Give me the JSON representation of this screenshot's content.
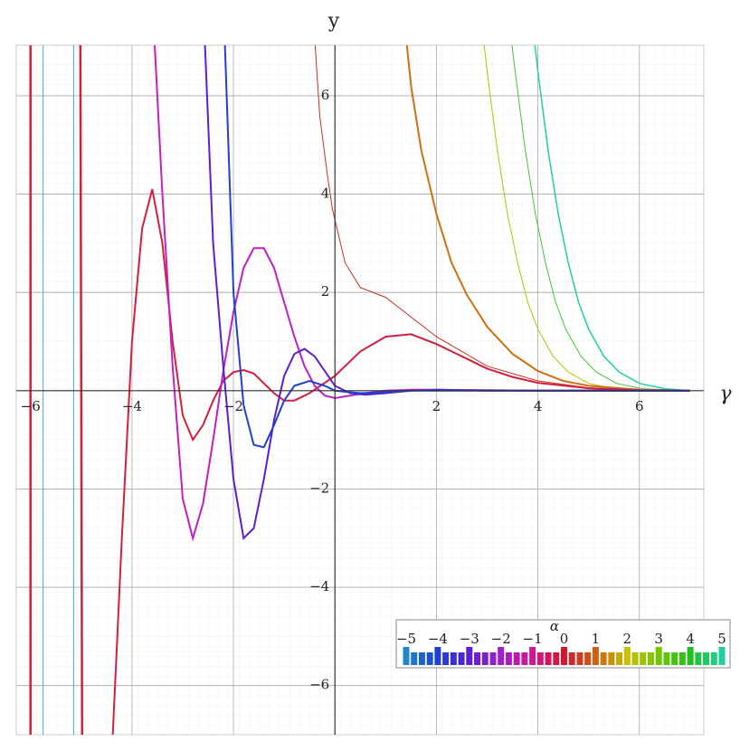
{
  "chart_data": {
    "type": "line",
    "xlabel": "γ",
    "ylabel": "y",
    "xlim": [
      -6.28,
      7.27
    ],
    "ylim": [
      -7.0,
      7.03
    ],
    "grid": true,
    "xticks": [
      {
        "value": -6,
        "label": "−6"
      },
      {
        "value": -4,
        "label": "−4"
      },
      {
        "value": -2,
        "label": "−2"
      },
      2,
      4,
      6
    ],
    "yticks": [
      {
        "value": -6,
        "label": "−6"
      },
      {
        "value": -4,
        "label": "−4"
      },
      {
        "value": -2,
        "label": "−2"
      },
      2,
      4,
      6
    ],
    "series": [
      {
        "color": "#20d0a0",
        "width": 1.5,
        "x": [
          3.9,
          4.0,
          4.2,
          4.4,
          4.6,
          4.8,
          5.0,
          5.3,
          5.6,
          6.0,
          6.5,
          7.0
        ],
        "values": [
          7.4,
          6.5,
          4.9,
          3.6,
          2.6,
          1.8,
          1.25,
          0.7,
          0.38,
          0.15,
          0.04,
          0
        ]
      },
      {
        "color": "#40c830",
        "width": 1,
        "x": [
          3.45,
          3.55,
          3.75,
          3.95,
          4.15,
          4.35,
          4.55,
          4.85,
          5.15,
          5.55,
          6.05,
          7.0
        ],
        "values": [
          7.4,
          6.5,
          4.9,
          3.6,
          2.6,
          1.8,
          1.25,
          0.7,
          0.38,
          0.15,
          0.04,
          0
        ]
      },
      {
        "color": "#b8c000",
        "width": 1,
        "x": [
          2.9,
          3.0,
          3.2,
          3.4,
          3.6,
          3.8,
          4.0,
          4.3,
          4.6,
          5.0,
          5.5,
          7.0
        ],
        "values": [
          7.4,
          6.5,
          4.9,
          3.6,
          2.6,
          1.8,
          1.25,
          0.7,
          0.38,
          0.15,
          0.04,
          0
        ]
      },
      {
        "color": "#d07010",
        "width": 2,
        "x": [
          1.4,
          1.5,
          1.7,
          2.0,
          2.3,
          2.6,
          3.0,
          3.5,
          4.0,
          4.5,
          5,
          6,
          7
        ],
        "values": [
          7.2,
          6.2,
          4.9,
          3.6,
          2.6,
          1.95,
          1.3,
          0.75,
          0.4,
          0.2,
          0.1,
          0.02,
          0
        ]
      },
      {
        "color": "#c83020",
        "width": 1,
        "x": [
          -0.4,
          -0.3,
          -0.15,
          -0.05,
          0.2,
          0.5,
          1.0,
          2.0,
          3.0,
          4.0,
          5.0,
          6.0,
          7.0
        ],
        "values": [
          7.2,
          5.6,
          4.4,
          3.7,
          2.6,
          2.1,
          1.9,
          1.1,
          0.5,
          0.2,
          0.06,
          0.01,
          0
        ]
      },
      {
        "color": "#d02040",
        "width": 2,
        "x": [
          -4.4,
          -4.2,
          -4.0,
          -3.8,
          -3.6,
          -3.4,
          -3.2,
          -3.0,
          -2.8,
          -2.6,
          -2.4,
          -2.2,
          -2.0,
          -1.8,
          -1.6,
          -1.4,
          -1.2,
          -1.0,
          -0.8,
          -0.5,
          0,
          0.5,
          1.0,
          1.5,
          2.0,
          2.5,
          3,
          3.5,
          4,
          5,
          6,
          7
        ],
        "values": [
          -7.5,
          -3,
          1,
          3.3,
          4.1,
          3.0,
          1.0,
          -0.5,
          -1.0,
          -0.7,
          -0.2,
          0.2,
          0.38,
          0.42,
          0.35,
          0.15,
          -0.05,
          -0.2,
          -0.2,
          -0.05,
          0.3,
          0.8,
          1.1,
          1.15,
          0.95,
          0.7,
          0.45,
          0.28,
          0.16,
          0.05,
          0.01,
          0
        ]
      },
      {
        "color": "#c020c0",
        "width": 2,
        "x": [
          -3.6,
          -3.4,
          -3.2,
          -3.0,
          -2.8,
          -2.6,
          -2.4,
          -2.2,
          -2.0,
          -1.8,
          -1.6,
          -1.4,
          -1.2,
          -1.0,
          -0.8,
          -0.6,
          -0.4,
          -0.2,
          0,
          0.3,
          0.6,
          1,
          1.5,
          2,
          3,
          4,
          5,
          6,
          7
        ],
        "values": [
          8,
          4,
          0.5,
          -2.2,
          -3.0,
          -2.3,
          -1.0,
          0.4,
          1.6,
          2.5,
          2.9,
          2.9,
          2.5,
          1.8,
          1.1,
          0.5,
          0.1,
          -0.1,
          -0.15,
          -0.1,
          -0.05,
          0,
          0.02,
          0.02,
          0.01,
          0,
          0,
          0,
          0
        ]
      },
      {
        "color": "#5a20d0",
        "width": 2,
        "x": [
          -2.6,
          -2.4,
          -2.2,
          -2.0,
          -1.8,
          -1.6,
          -1.4,
          -1.2,
          -1.0,
          -0.8,
          -0.6,
          -0.4,
          -0.2,
          0,
          0.3,
          0.6,
          1,
          1.5,
          2,
          3,
          4,
          5,
          6,
          7
        ],
        "values": [
          8,
          3,
          0.5,
          -1.8,
          -3.0,
          -2.8,
          -1.8,
          -0.6,
          0.3,
          0.75,
          0.85,
          0.7,
          0.4,
          0.1,
          -0.05,
          -0.08,
          -0.05,
          0,
          0.02,
          0,
          0,
          0,
          0,
          0
        ]
      },
      {
        "color": "#2040d0",
        "width": 2,
        "x": [
          -2.2,
          -2.0,
          -1.8,
          -1.6,
          -1.4,
          -1.2,
          -1.0,
          -0.8,
          -0.5,
          -0.2,
          0,
          0.5,
          1,
          1.5,
          2,
          3,
          7
        ],
        "values": [
          8,
          2,
          -0.3,
          -1.1,
          -1.15,
          -0.7,
          -0.2,
          0.1,
          0.2,
          0.1,
          0,
          -0.05,
          -0.03,
          0,
          0,
          0,
          0
        ]
      },
      {
        "color": "#40a8d8",
        "width": 1,
        "x": [
          -5.75,
          -5.75
        ],
        "values": [
          8,
          -8
        ]
      },
      {
        "color": "#40a8d8",
        "width": 1,
        "x": [
          -5.15,
          -5.15
        ],
        "values": [
          8,
          -8
        ]
      },
      {
        "color": "#d02040",
        "width": 2.5,
        "x": [
          -6.0,
          -6.0
        ],
        "values": [
          8,
          -8
        ]
      },
      {
        "color": "#d02040",
        "width": 2.5,
        "x": [
          -5.02,
          -4.98
        ],
        "values": [
          8,
          -8
        ]
      }
    ],
    "colorbar": {
      "title": "α",
      "ticks": [
        {
          "value": -5,
          "label": "−5"
        },
        {
          "value": -4,
          "label": "−4"
        },
        {
          "value": -3,
          "label": "−3"
        },
        {
          "value": -2,
          "label": "−2"
        },
        {
          "value": -1,
          "label": "−1"
        },
        0,
        1,
        2,
        3,
        4,
        5
      ],
      "colors": [
        "#1e88c8",
        "#2040d0",
        "#5a20d0",
        "#a020c8",
        "#d01890",
        "#d01830",
        "#d06010",
        "#c8c000",
        "#70c800",
        "#20c020",
        "#20d0a0"
      ]
    }
  }
}
